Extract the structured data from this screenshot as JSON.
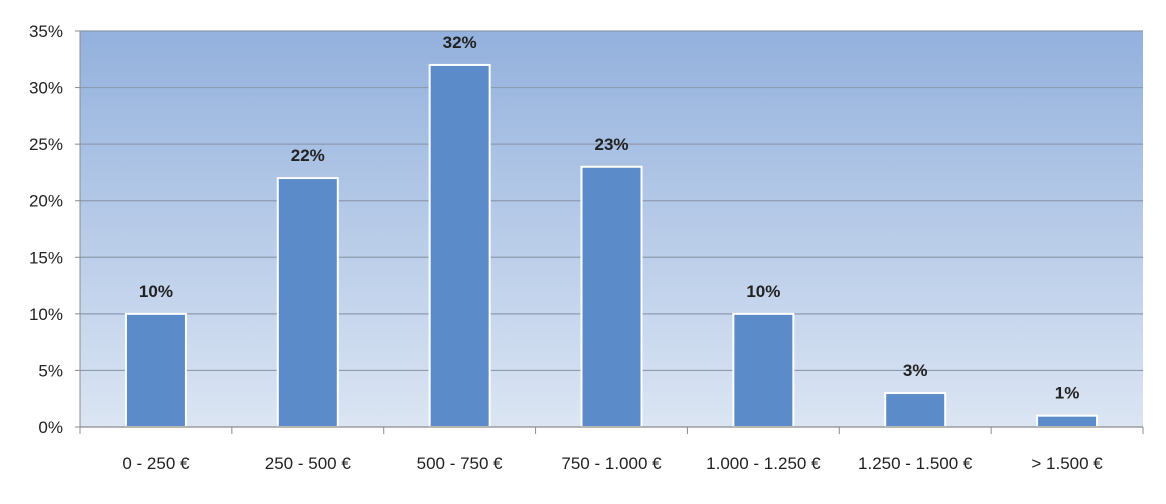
{
  "chart_data": {
    "type": "bar",
    "title": "",
    "xlabel": "",
    "ylabel": "",
    "categories": [
      "0 - 250 €",
      "250 - 500 €",
      "500 - 750 €",
      "750 - 1.000 €",
      "1.000 - 1.250 €",
      "1.250 - 1.500 €",
      "> 1.500 €"
    ],
    "values": [
      10,
      22,
      32,
      23,
      10,
      3,
      1
    ],
    "data_labels": [
      "10%",
      "22%",
      "32%",
      "23%",
      "10%",
      "3%",
      "1%"
    ],
    "ylim": [
      0,
      35
    ],
    "y_ticks": [
      0,
      5,
      10,
      15,
      20,
      25,
      30,
      35
    ],
    "y_tick_labels": [
      "0%",
      "5%",
      "10%",
      "15%",
      "20%",
      "25%",
      "30%",
      "35%"
    ],
    "grid": true,
    "legend": "none",
    "colors": {
      "bar_fill": "#5b8bc9",
      "bar_stroke": "#ffffff",
      "plot_bg_top": "#93b1dd",
      "plot_bg_bottom": "#dbe5f3",
      "grid": "#8c9bb0",
      "axis": "#8c8c8c"
    }
  }
}
